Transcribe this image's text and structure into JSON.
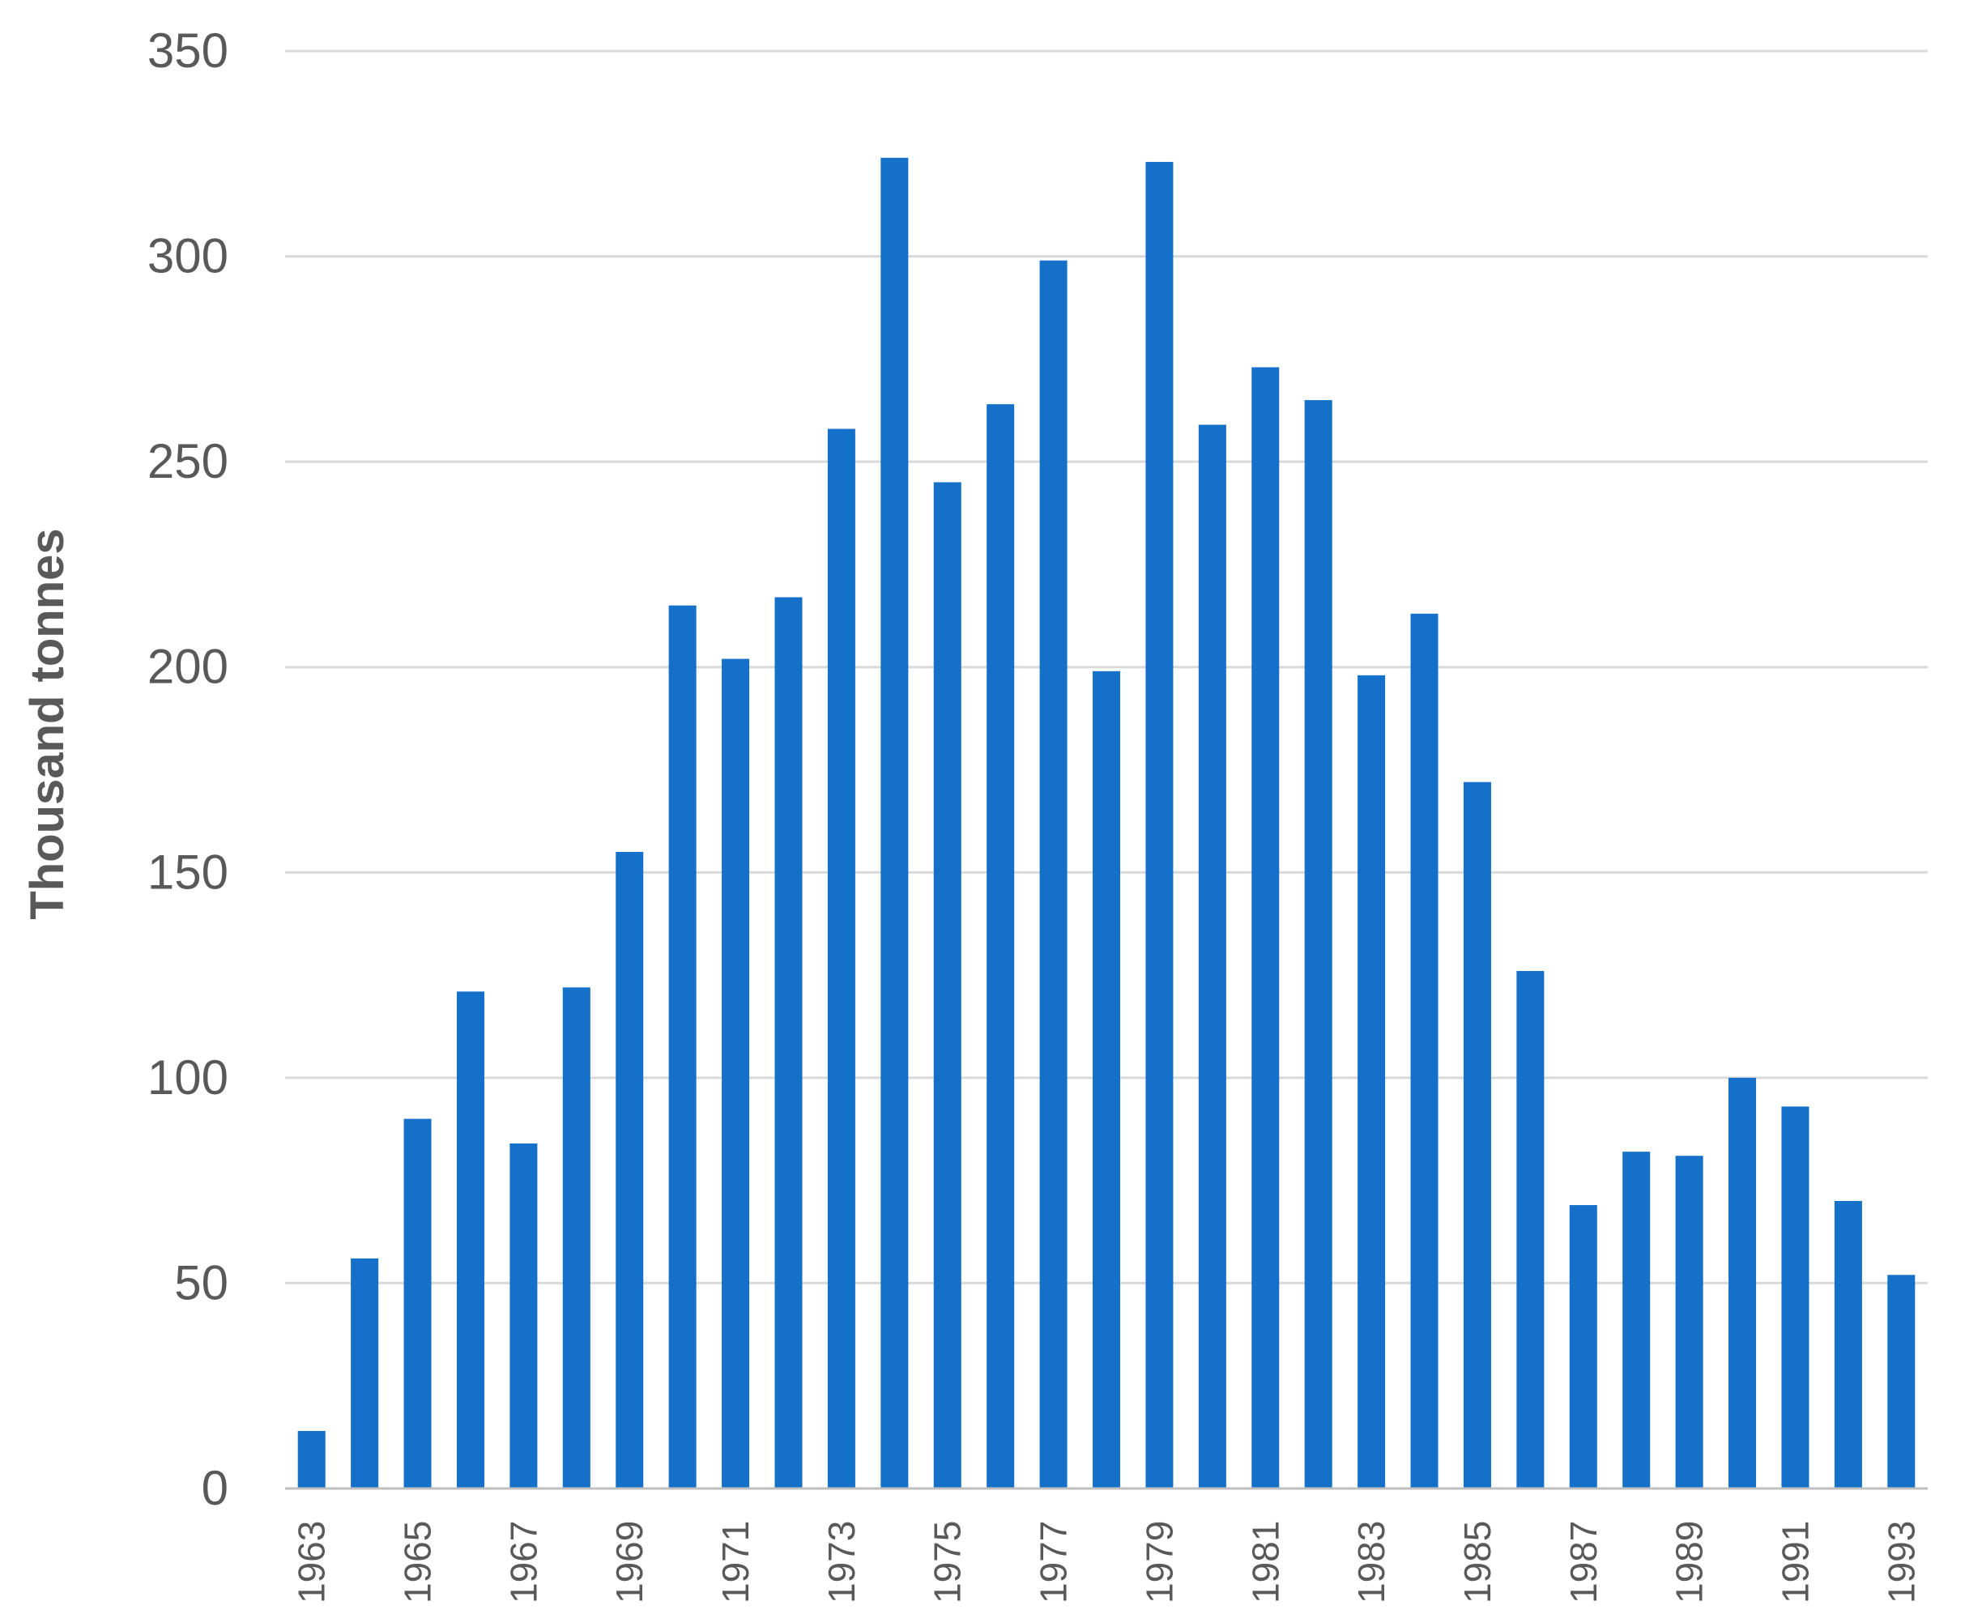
{
  "chart_data": {
    "type": "bar",
    "title": "",
    "xlabel": "",
    "ylabel": "Thousand tonnes",
    "ylim": [
      0,
      350
    ],
    "yticks": [
      "0",
      "50",
      "100",
      "150",
      "200",
      "250",
      "300",
      "350"
    ],
    "categories": [
      "1963",
      "1964",
      "1965",
      "1966",
      "1967",
      "1968",
      "1969",
      "1970",
      "1971",
      "1972",
      "1973",
      "1974",
      "1975",
      "1976",
      "1977",
      "1978",
      "1979",
      "1980",
      "1981",
      "1982",
      "1983",
      "1984",
      "1985",
      "1986",
      "1987",
      "1988",
      "1989",
      "1990",
      "1991",
      "1992",
      "1993"
    ],
    "x_tick_labels": [
      "1963",
      "1965",
      "1967",
      "1969",
      "1971",
      "1973",
      "1975",
      "1977",
      "1979",
      "1981",
      "1983",
      "1985",
      "1987",
      "1989",
      "1991",
      "1993"
    ],
    "values": [
      14,
      56,
      90,
      121,
      84,
      122,
      155,
      215,
      202,
      217,
      258,
      324,
      245,
      264,
      299,
      199,
      323,
      259,
      273,
      265,
      198,
      213,
      172,
      126,
      69,
      82,
      81,
      100,
      93,
      70,
      52
    ],
    "bar_color": "#1570c9",
    "grid": true,
    "legend": "none"
  }
}
